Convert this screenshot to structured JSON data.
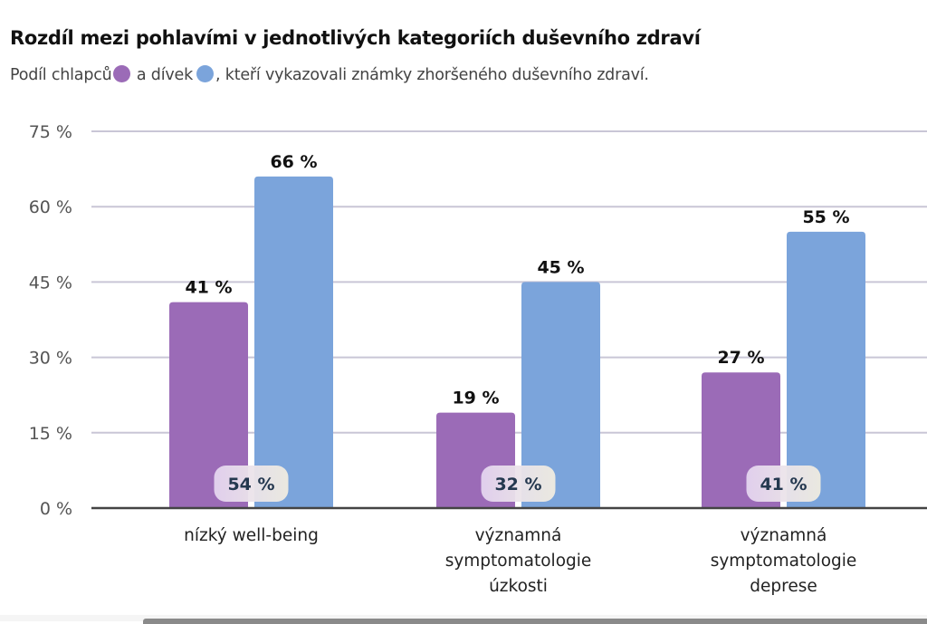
{
  "header": {
    "title": "Rozdíl mezi pohlavími v jednotlivých kategoriích duševního zdraví",
    "subtitle_part1": "Podíl chlapců",
    "subtitle_part2": " a dívek",
    "subtitle_part3": ", kteří vykazovali známky zhoršeného duševního zdraví."
  },
  "colors": {
    "boys": "#9b6bb7",
    "girls": "#7ba4db",
    "gridline": "#c9c6d6",
    "axis": "#444444",
    "badge_text": "#24384f"
  },
  "chart_data": {
    "type": "bar",
    "title": "Rozdíl mezi pohlavími v jednotlivých kategoriích duševního zdraví",
    "subtitle": "Podíl chlapců a dívek, kteří vykazovali známky zhoršeného duševního zdraví.",
    "xlabel": "",
    "ylabel": "",
    "ylim": [
      0,
      75
    ],
    "yticks": [
      0,
      15,
      30,
      45,
      60,
      75
    ],
    "ytick_labels": [
      "0 %",
      "15 %",
      "30 %",
      "45 %",
      "60 %",
      "75 %"
    ],
    "grid": true,
    "legend": "inline-subtitle",
    "categories": [
      [
        "nízký well-being"
      ],
      [
        "významná",
        "symptomatologie",
        "úzkosti"
      ],
      [
        "významná",
        "symptomatologie",
        "deprese"
      ]
    ],
    "series": [
      {
        "name": "chlapci",
        "color": "#9b6bb7",
        "values": [
          41,
          19,
          27
        ],
        "labels": [
          "41 %",
          "19 %",
          "27 %"
        ]
      },
      {
        "name": "dívky",
        "color": "#7ba4db",
        "values": [
          66,
          45,
          55
        ],
        "labels": [
          "66 %",
          "45 %",
          "55 %"
        ]
      }
    ],
    "annotations": {
      "description": "relative difference badges",
      "values": [
        54,
        32,
        41
      ],
      "labels": [
        "54 %",
        "32 %",
        "41 %"
      ]
    }
  }
}
